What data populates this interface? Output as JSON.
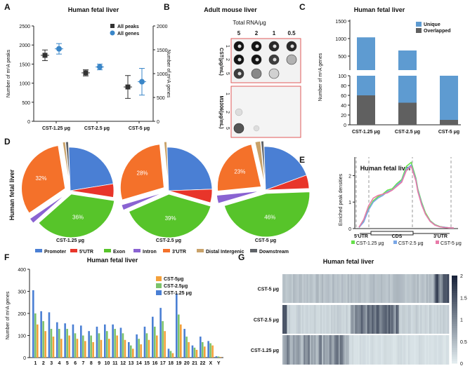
{
  "panel_letters": [
    "A",
    "B",
    "C",
    "D",
    "E",
    "F",
    "G"
  ],
  "legend_colors": {
    "blue": "#4a7fd4",
    "red": "#e8352a",
    "green": "#57c42a",
    "purple": "#8a63d2",
    "orange": "#f4712a",
    "tan": "#c9a26a",
    "gray": "#5f6368"
  },
  "chart_data": [
    {
      "panel": "A",
      "type": "scatter",
      "title": "Human fetal liver",
      "ylabel": "Number of m⁶A peaks",
      "ylabel2": "Number of m⁶A genes",
      "ylim": [
        0,
        2500
      ],
      "ylim2": [
        0,
        2000
      ],
      "yticks": [
        "0",
        "500",
        "1000",
        "1500",
        "2000",
        "2500"
      ],
      "yticks2": [
        "0",
        "500",
        "1000",
        "1500",
        "2000"
      ],
      "categories": [
        "CST-1.25 μg",
        "CST-2.5 μg",
        "CST-5 μg"
      ],
      "series": [
        {
          "name": "All peaks",
          "color": "#333333",
          "mean": [
            1730,
            1270,
            900
          ],
          "err": [
            140,
            80,
            300
          ]
        },
        {
          "name": "All genes",
          "color": "#3a86c8",
          "mean": [
            1520,
            1140,
            830
          ],
          "err": [
            110,
            60,
            280
          ]
        }
      ]
    },
    {
      "panel": "B",
      "type": "other",
      "title": "Adult mouse liver",
      "header": "Total RNA/μg",
      "columns": [
        "5",
        "2",
        "1",
        "0.5"
      ],
      "blot1_label": "CST(μg/mL)",
      "blot2_label": "M1006(μg/mL)",
      "rows": [
        "1",
        "2",
        "5"
      ]
    },
    {
      "panel": "C",
      "type": "bar",
      "title": "Human fetal liver",
      "ylabel": "Number of m⁶A genes",
      "categories": [
        "CST-1.25 μg",
        "CST-2.5 μg",
        "CST-5 μg"
      ],
      "series": [
        {
          "name": "Unique",
          "color": "#5e9bd1",
          "values": [
            975,
            615,
            90
          ]
        },
        {
          "name": "Overlapped",
          "color": "#606060",
          "values": [
            60,
            45,
            10
          ]
        }
      ],
      "upper_ticks": [
        "500",
        "1000",
        "1500"
      ],
      "lower_ticks": [
        "0",
        "20",
        "40",
        "60",
        "80",
        "100"
      ]
    },
    {
      "panel": "D",
      "type": "pie",
      "row_label": "Human fetal liver",
      "categories": [
        "Promoter",
        "5'UTR",
        "Exon",
        "Intron",
        "3'UTR",
        "Distal Intergenic",
        "Downstream"
      ],
      "colors": [
        "#4a7fd4",
        "#e8352a",
        "#57c42a",
        "#8a63d2",
        "#f4712a",
        "#c9a26a",
        "#5f6368"
      ],
      "pies": [
        {
          "name": "CST-1.25 μg",
          "values": [
            23,
            5,
            36,
            2,
            32,
            1,
            1
          ],
          "labels": {
            "exon": "36%",
            "utr3": "32%"
          }
        },
        {
          "name": "CST-2.5 μg",
          "values": [
            25,
            5,
            39,
            2,
            28,
            1,
            0
          ],
          "labels": {
            "exon": "39%",
            "utr3": "28%"
          }
        },
        {
          "name": "CST-5 μg",
          "values": [
            20,
            5,
            46,
            3,
            23,
            2,
            1
          ],
          "labels": {
            "exon": "46%",
            "utr3": "23%"
          }
        }
      ]
    },
    {
      "panel": "E",
      "type": "line",
      "title": "Human fetal liver",
      "ylabel": "Enriched peak densities",
      "yticks": [
        "0",
        "1",
        "2"
      ],
      "ylim": [
        0,
        2.7
      ],
      "regions": [
        "5'UTR",
        "CDS",
        "3'UTR"
      ],
      "x": [
        0,
        0.05,
        0.1,
        0.15,
        0.2,
        0.25,
        0.3,
        0.35,
        0.4,
        0.45,
        0.5,
        0.55,
        0.6,
        0.62,
        0.66,
        0.7,
        0.75,
        0.8,
        0.85,
        0.9,
        0.95,
        1
      ],
      "series": [
        {
          "name": "CST-1.25 μg",
          "color": "#66e04a",
          "values": [
            0.05,
            0.3,
            0.75,
            1.05,
            1.2,
            1.3,
            1.45,
            1.5,
            1.7,
            1.85,
            2.35,
            2.5,
            1.9,
            1.5,
            1.0,
            0.6,
            0.3,
            0.15,
            0.08,
            0.05,
            0.03,
            0.02
          ]
        },
        {
          "name": "CST-2.5 μg",
          "color": "#7aa7e6",
          "values": [
            0.04,
            0.25,
            0.7,
            1.0,
            1.15,
            1.25,
            1.4,
            1.45,
            1.65,
            1.8,
            2.25,
            2.4,
            1.85,
            1.45,
            0.95,
            0.55,
            0.28,
            0.14,
            0.07,
            0.05,
            0.03,
            0.02
          ]
        },
        {
          "name": "CST-5 μg",
          "color": "#e87aa8",
          "values": [
            0.05,
            0.35,
            0.85,
            1.15,
            1.25,
            1.3,
            1.35,
            1.45,
            1.6,
            1.75,
            2.2,
            2.35,
            1.8,
            1.4,
            0.9,
            0.55,
            0.27,
            0.13,
            0.07,
            0.04,
            0.03,
            0.02
          ]
        }
      ]
    },
    {
      "panel": "F",
      "type": "bar",
      "title": "Human fetal liver",
      "ylabel": "Number of m⁶A genes",
      "ylim": [
        0,
        400
      ],
      "yticks": [
        "0",
        "100",
        "200",
        "300",
        "400"
      ],
      "categories": [
        "1",
        "2",
        "3",
        "4",
        "5",
        "6",
        "7",
        "8",
        "9",
        "10",
        "11",
        "12",
        "13",
        "14",
        "15",
        "16",
        "17",
        "18",
        "19",
        "20",
        "21",
        "22",
        "X",
        "Y"
      ],
      "series": [
        {
          "name": "CST-5μg",
          "color": "#f4a03a",
          "values": [
            150,
            120,
            95,
            85,
            100,
            85,
            75,
            70,
            80,
            85,
            100,
            80,
            40,
            60,
            80,
            100,
            120,
            20,
            150,
            70,
            35,
            50,
            55,
            3
          ]
        },
        {
          "name": "CST-2.5μg",
          "color": "#7cc36b",
          "values": [
            200,
            165,
            130,
            130,
            130,
            110,
            100,
            100,
            110,
            120,
            130,
            110,
            55,
            85,
            110,
            140,
            165,
            30,
            195,
            95,
            45,
            70,
            65,
            5
          ]
        },
        {
          "name": "CST-1.25 μg",
          "color": "#4a7fd4",
          "values": [
            305,
            210,
            205,
            160,
            155,
            150,
            145,
            120,
            140,
            150,
            150,
            135,
            70,
            105,
            140,
            185,
            225,
            40,
            290,
            130,
            55,
            95,
            75,
            6
          ]
        }
      ]
    },
    {
      "panel": "G",
      "type": "heatmap",
      "title": "Human fetal liver",
      "rows": [
        "CST-5 μg",
        "CST-2.5 μg",
        "CST-1.25 μg"
      ],
      "colorbar_ticks": [
        "2",
        "1.5",
        "1",
        "0.5",
        "0"
      ],
      "range": [
        0,
        2
      ]
    }
  ]
}
